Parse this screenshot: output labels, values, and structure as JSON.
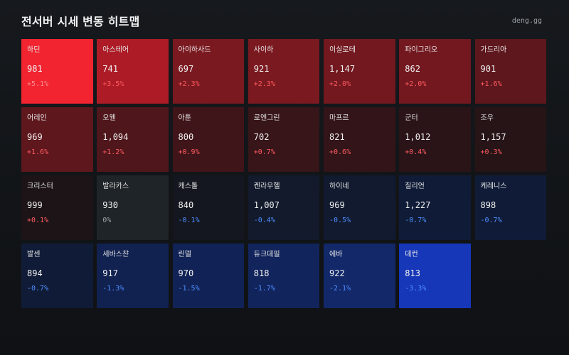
{
  "header": {
    "title": "전서버 시세 변동 히트맵",
    "brand": "deng.gg"
  },
  "colors": {
    "up_text": "#ff5a5f",
    "down_text": "#4d8dff",
    "flat_text": "#9aa0a6"
  },
  "cells": [
    {
      "name": "하딘",
      "price": "981",
      "change": "+5.1%",
      "dir": "up",
      "bg": "#f12430"
    },
    {
      "name": "아스테어",
      "price": "741",
      "change": "+3.5%",
      "dir": "up",
      "bg": "#ad1c26"
    },
    {
      "name": "아이하사드",
      "price": "697",
      "change": "+2.3%",
      "dir": "up",
      "bg": "#7b1920"
    },
    {
      "name": "사이하",
      "price": "921",
      "change": "+2.3%",
      "dir": "up",
      "bg": "#7b1920"
    },
    {
      "name": "이실로테",
      "price": "1,147",
      "change": "+2.0%",
      "dir": "up",
      "bg": "#73181f"
    },
    {
      "name": "파이그리오",
      "price": "862",
      "change": "+2.0%",
      "dir": "up",
      "bg": "#73181f"
    },
    {
      "name": "가드리아",
      "price": "901",
      "change": "+1.6%",
      "dir": "up",
      "bg": "#5e171d"
    },
    {
      "name": "어레인",
      "price": "969",
      "change": "+1.6%",
      "dir": "up",
      "bg": "#5e171d"
    },
    {
      "name": "오웬",
      "price": "1,094",
      "change": "+1.2%",
      "dir": "up",
      "bg": "#4f161b"
    },
    {
      "name": "아툰",
      "price": "800",
      "change": "+0.9%",
      "dir": "up",
      "bg": "#40151a"
    },
    {
      "name": "로엔그린",
      "price": "702",
      "change": "+0.7%",
      "dir": "up",
      "bg": "#371519"
    },
    {
      "name": "마프르",
      "price": "821",
      "change": "+0.6%",
      "dir": "up",
      "bg": "#331519"
    },
    {
      "name": "군터",
      "price": "1,012",
      "change": "+0.4%",
      "dir": "up",
      "bg": "#2a1418"
    },
    {
      "name": "조우",
      "price": "1,157",
      "change": "+0.3%",
      "dir": "up",
      "bg": "#261417"
    },
    {
      "name": "크리스터",
      "price": "999",
      "change": "+0.1%",
      "dir": "up",
      "bg": "#1c1417"
    },
    {
      "name": "발라카스",
      "price": "930",
      "change": "0%",
      "dir": "flat",
      "bg": "#1f2428"
    },
    {
      "name": "캐스톨",
      "price": "840",
      "change": "-0.1%",
      "dir": "down",
      "bg": "#14171f"
    },
    {
      "name": "켄라우헬",
      "price": "1,007",
      "change": "-0.4%",
      "dir": "down",
      "bg": "#121a2c"
    },
    {
      "name": "하이네",
      "price": "969",
      "change": "-0.5%",
      "dir": "down",
      "bg": "#111a2f"
    },
    {
      "name": "질리언",
      "price": "1,227",
      "change": "-0.7%",
      "dir": "down",
      "bg": "#101c37"
    },
    {
      "name": "케레니스",
      "price": "898",
      "change": "-0.7%",
      "dir": "down",
      "bg": "#101c37"
    },
    {
      "name": "발센",
      "price": "894",
      "change": "-0.7%",
      "dir": "down",
      "bg": "#101c37"
    },
    {
      "name": "세바스챤",
      "price": "917",
      "change": "-1.3%",
      "dir": "down",
      "bg": "#112150"
    },
    {
      "name": "린델",
      "price": "970",
      "change": "-1.5%",
      "dir": "down",
      "bg": "#112356"
    },
    {
      "name": "듀크데필",
      "price": "818",
      "change": "-1.7%",
      "dir": "down",
      "bg": "#11245c"
    },
    {
      "name": "에바",
      "price": "922",
      "change": "-2.1%",
      "dir": "down",
      "bg": "#122869"
    },
    {
      "name": "데컨",
      "price": "813",
      "change": "-3.3%",
      "dir": "down",
      "bg": "#1637b8"
    }
  ]
}
